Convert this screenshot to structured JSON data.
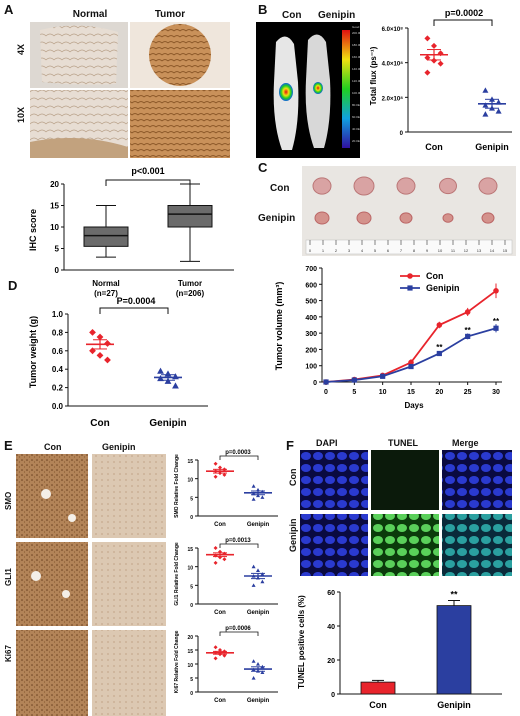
{
  "panels": {
    "A": {
      "label": "A",
      "col_headers": [
        "Normal",
        "Tumor"
      ],
      "row_headers": [
        "4X",
        "10X"
      ],
      "chart": {
        "type": "boxplot",
        "ylabel": "IHC score",
        "ylim": [
          0,
          20
        ],
        "yticks": [
          "0",
          "5",
          "10",
          "15",
          "20"
        ],
        "categories": [
          "Normal\n(n=27)",
          "Tumor\n(n=206)"
        ],
        "cat_line1": [
          "Normal",
          "Tumor"
        ],
        "cat_line2": [
          "(n=27)",
          "(n=206)"
        ],
        "boxes": [
          {
            "min": 3,
            "q1": 5.5,
            "median": 8,
            "q3": 10,
            "max": 15
          },
          {
            "min": 2,
            "q1": 10,
            "median": 13,
            "q3": 15,
            "max": 20
          }
        ],
        "annotation": "p<0.001"
      }
    },
    "B": {
      "label": "B",
      "groups": [
        "Con",
        "Genipin"
      ],
      "chart": {
        "type": "scatter",
        "ylabel": "Total flux (ps⁻¹)",
        "yticks": [
          "0",
          "2.0×10⁸",
          "4.0×10⁸",
          "6.0×10⁸"
        ],
        "ylim": [
          0,
          700000000.0
        ],
        "categories": [
          "Con",
          "Genipin"
        ],
        "series": [
          {
            "name": "Con",
            "values": [
              630000000.0,
              580000000.0,
              530000000.0,
              500000000.0,
              480000000.0,
              460000000.0,
              400000000.0
            ],
            "mean": 520000000.0,
            "sem": 35000000.0,
            "color": "#e8242c"
          },
          {
            "name": "Genipin",
            "values": [
              280000000.0,
              220000000.0,
              200000000.0,
              180000000.0,
              160000000.0,
              140000000.0,
              120000000.0
            ],
            "mean": 190000000.0,
            "sem": 30000000.0,
            "color": "#2b3fa0"
          }
        ],
        "annotation": "p=0.0002"
      }
    },
    "C": {
      "label": "C",
      "row_labels": [
        "Con",
        "Genipin"
      ],
      "chart": {
        "type": "line",
        "xlabel": "Days",
        "ylabel": "Tumor volume (mm³)",
        "x": [
          0,
          5,
          10,
          15,
          20,
          25,
          30
        ],
        "xticks": [
          "0",
          "5",
          "10",
          "15",
          "20",
          "25",
          "30"
        ],
        "ylim": [
          0,
          700
        ],
        "yticks": [
          "0",
          "100",
          "200",
          "300",
          "400",
          "500",
          "600",
          "700"
        ],
        "series": [
          {
            "name": "Con",
            "values": [
              0,
              15,
              40,
              120,
              350,
              430,
              560
            ],
            "err": [
              0,
              5,
              10,
              20,
              20,
              25,
              45
            ],
            "color": "#e8242c"
          },
          {
            "name": "Genipin",
            "values": [
              0,
              12,
              35,
              95,
              175,
              280,
              330
            ],
            "err": [
              0,
              4,
              8,
              12,
              15,
              18,
              25
            ],
            "color": "#2b3fa0"
          }
        ],
        "sig_marks": [
          {
            "x": 20,
            "y": 195,
            "label": "**"
          },
          {
            "x": 25,
            "y": 300,
            "label": "**"
          },
          {
            "x": 30,
            "y": 355,
            "label": "**"
          }
        ]
      }
    },
    "D": {
      "label": "D",
      "chart": {
        "type": "scatter",
        "ylabel": "Tumor weight (g)",
        "ylim": [
          0,
          1.0
        ],
        "yticks": [
          "0.0",
          "0.2",
          "0.4",
          "0.6",
          "0.8",
          "1.0"
        ],
        "categories": [
          "Con",
          "Genipin"
        ],
        "series": [
          {
            "name": "Con",
            "values": [
              0.8,
              0.75,
              0.68,
              0.6,
              0.55,
              0.5
            ],
            "mean": 0.67,
            "sem": 0.05,
            "color": "#e8242c"
          },
          {
            "name": "Genipin",
            "values": [
              0.38,
              0.35,
              0.32,
              0.3,
              0.27,
              0.22
            ],
            "mean": 0.31,
            "sem": 0.03,
            "color": "#2b3fa0"
          }
        ],
        "annotation": "P=0.0004"
      }
    },
    "E": {
      "label": "E",
      "col_headers": [
        "Con",
        "Genipin"
      ],
      "row_headers": [
        "SMO",
        "GLI1",
        "Ki67"
      ],
      "charts": [
        {
          "type": "scatter",
          "ylabel": "SMO Relative Fold Change",
          "ylim": [
            0,
            15
          ],
          "yticks": [
            "0",
            "5",
            "10",
            "15"
          ],
          "categories": [
            "Con",
            "Genipin"
          ],
          "series": [
            {
              "name": "Con",
              "values": [
                14,
                13,
                12.5,
                12,
                11.5,
                11,
                10.5
              ],
              "mean": 12,
              "sem": 0.5,
              "color": "#e8242c"
            },
            {
              "name": "Genipin",
              "values": [
                8,
                7,
                6.5,
                6,
                5.5,
                5,
                4.5
              ],
              "mean": 6.2,
              "sem": 0.5,
              "color": "#2b3fa0"
            }
          ],
          "annotation": "p=0.0003"
        },
        {
          "type": "scatter",
          "ylabel": "GLI1 Relative Fold Change",
          "ylim": [
            0,
            15
          ],
          "yticks": [
            "0",
            "5",
            "10",
            "15"
          ],
          "categories": [
            "Con",
            "Genipin"
          ],
          "series": [
            {
              "name": "Con",
              "values": [
                15,
                14,
                13.5,
                13,
                12.5,
                12,
                11
              ],
              "mean": 13.2,
              "sem": 0.5,
              "color": "#e8242c"
            },
            {
              "name": "Genipin",
              "values": [
                10,
                9,
                8,
                7.5,
                7,
                6,
                5
              ],
              "mean": 7.5,
              "sem": 0.7,
              "color": "#2b3fa0"
            }
          ],
          "annotation": "p=0.0013"
        },
        {
          "type": "scatter",
          "ylabel": "Ki67 Relative Fold Change",
          "ylim": [
            0,
            20
          ],
          "yticks": [
            "0",
            "5",
            "10",
            "15",
            "20"
          ],
          "categories": [
            "Con",
            "Genipin"
          ],
          "series": [
            {
              "name": "Con",
              "values": [
                16,
                15,
                14.5,
                14,
                13.5,
                13,
                12
              ],
              "mean": 14,
              "sem": 0.5,
              "color": "#e8242c"
            },
            {
              "name": "Genipin",
              "values": [
                11,
                10,
                9,
                8,
                7.5,
                7,
                5
              ],
              "mean": 8.2,
              "sem": 0.8,
              "color": "#2b3fa0"
            }
          ],
          "annotation": "p=0.0006"
        }
      ]
    },
    "F": {
      "label": "F",
      "col_headers": [
        "DAPI",
        "TUNEL",
        "Merge"
      ],
      "row_headers": [
        "Con",
        "Genipin"
      ],
      "chart": {
        "type": "bar",
        "ylabel": "TUNEL positive cells (%)",
        "ylim": [
          0,
          60
        ],
        "yticks": [
          "0",
          "20",
          "40",
          "60"
        ],
        "categories": [
          "Con",
          "Genipin"
        ],
        "values": [
          7,
          52
        ],
        "errors": [
          1,
          3
        ],
        "colors": [
          "#e8242c",
          "#2b3fa0"
        ],
        "sig_label": "**"
      }
    }
  },
  "b_colorbar": {
    "top_label": "Good",
    "values": [
      "200.0E6",
      "180.0E6",
      "160.0E6",
      "140.0E6",
      "120.0E6",
      "100.0E6",
      "80.0E6",
      "60.0E6",
      "40.0E6",
      "20.0E6"
    ]
  },
  "ruler_numbers": [
    "0",
    "1",
    "2",
    "3",
    "4",
    "5",
    "6",
    "7",
    "8",
    "9",
    "10",
    "11",
    "12",
    "13",
    "14",
    "15"
  ]
}
